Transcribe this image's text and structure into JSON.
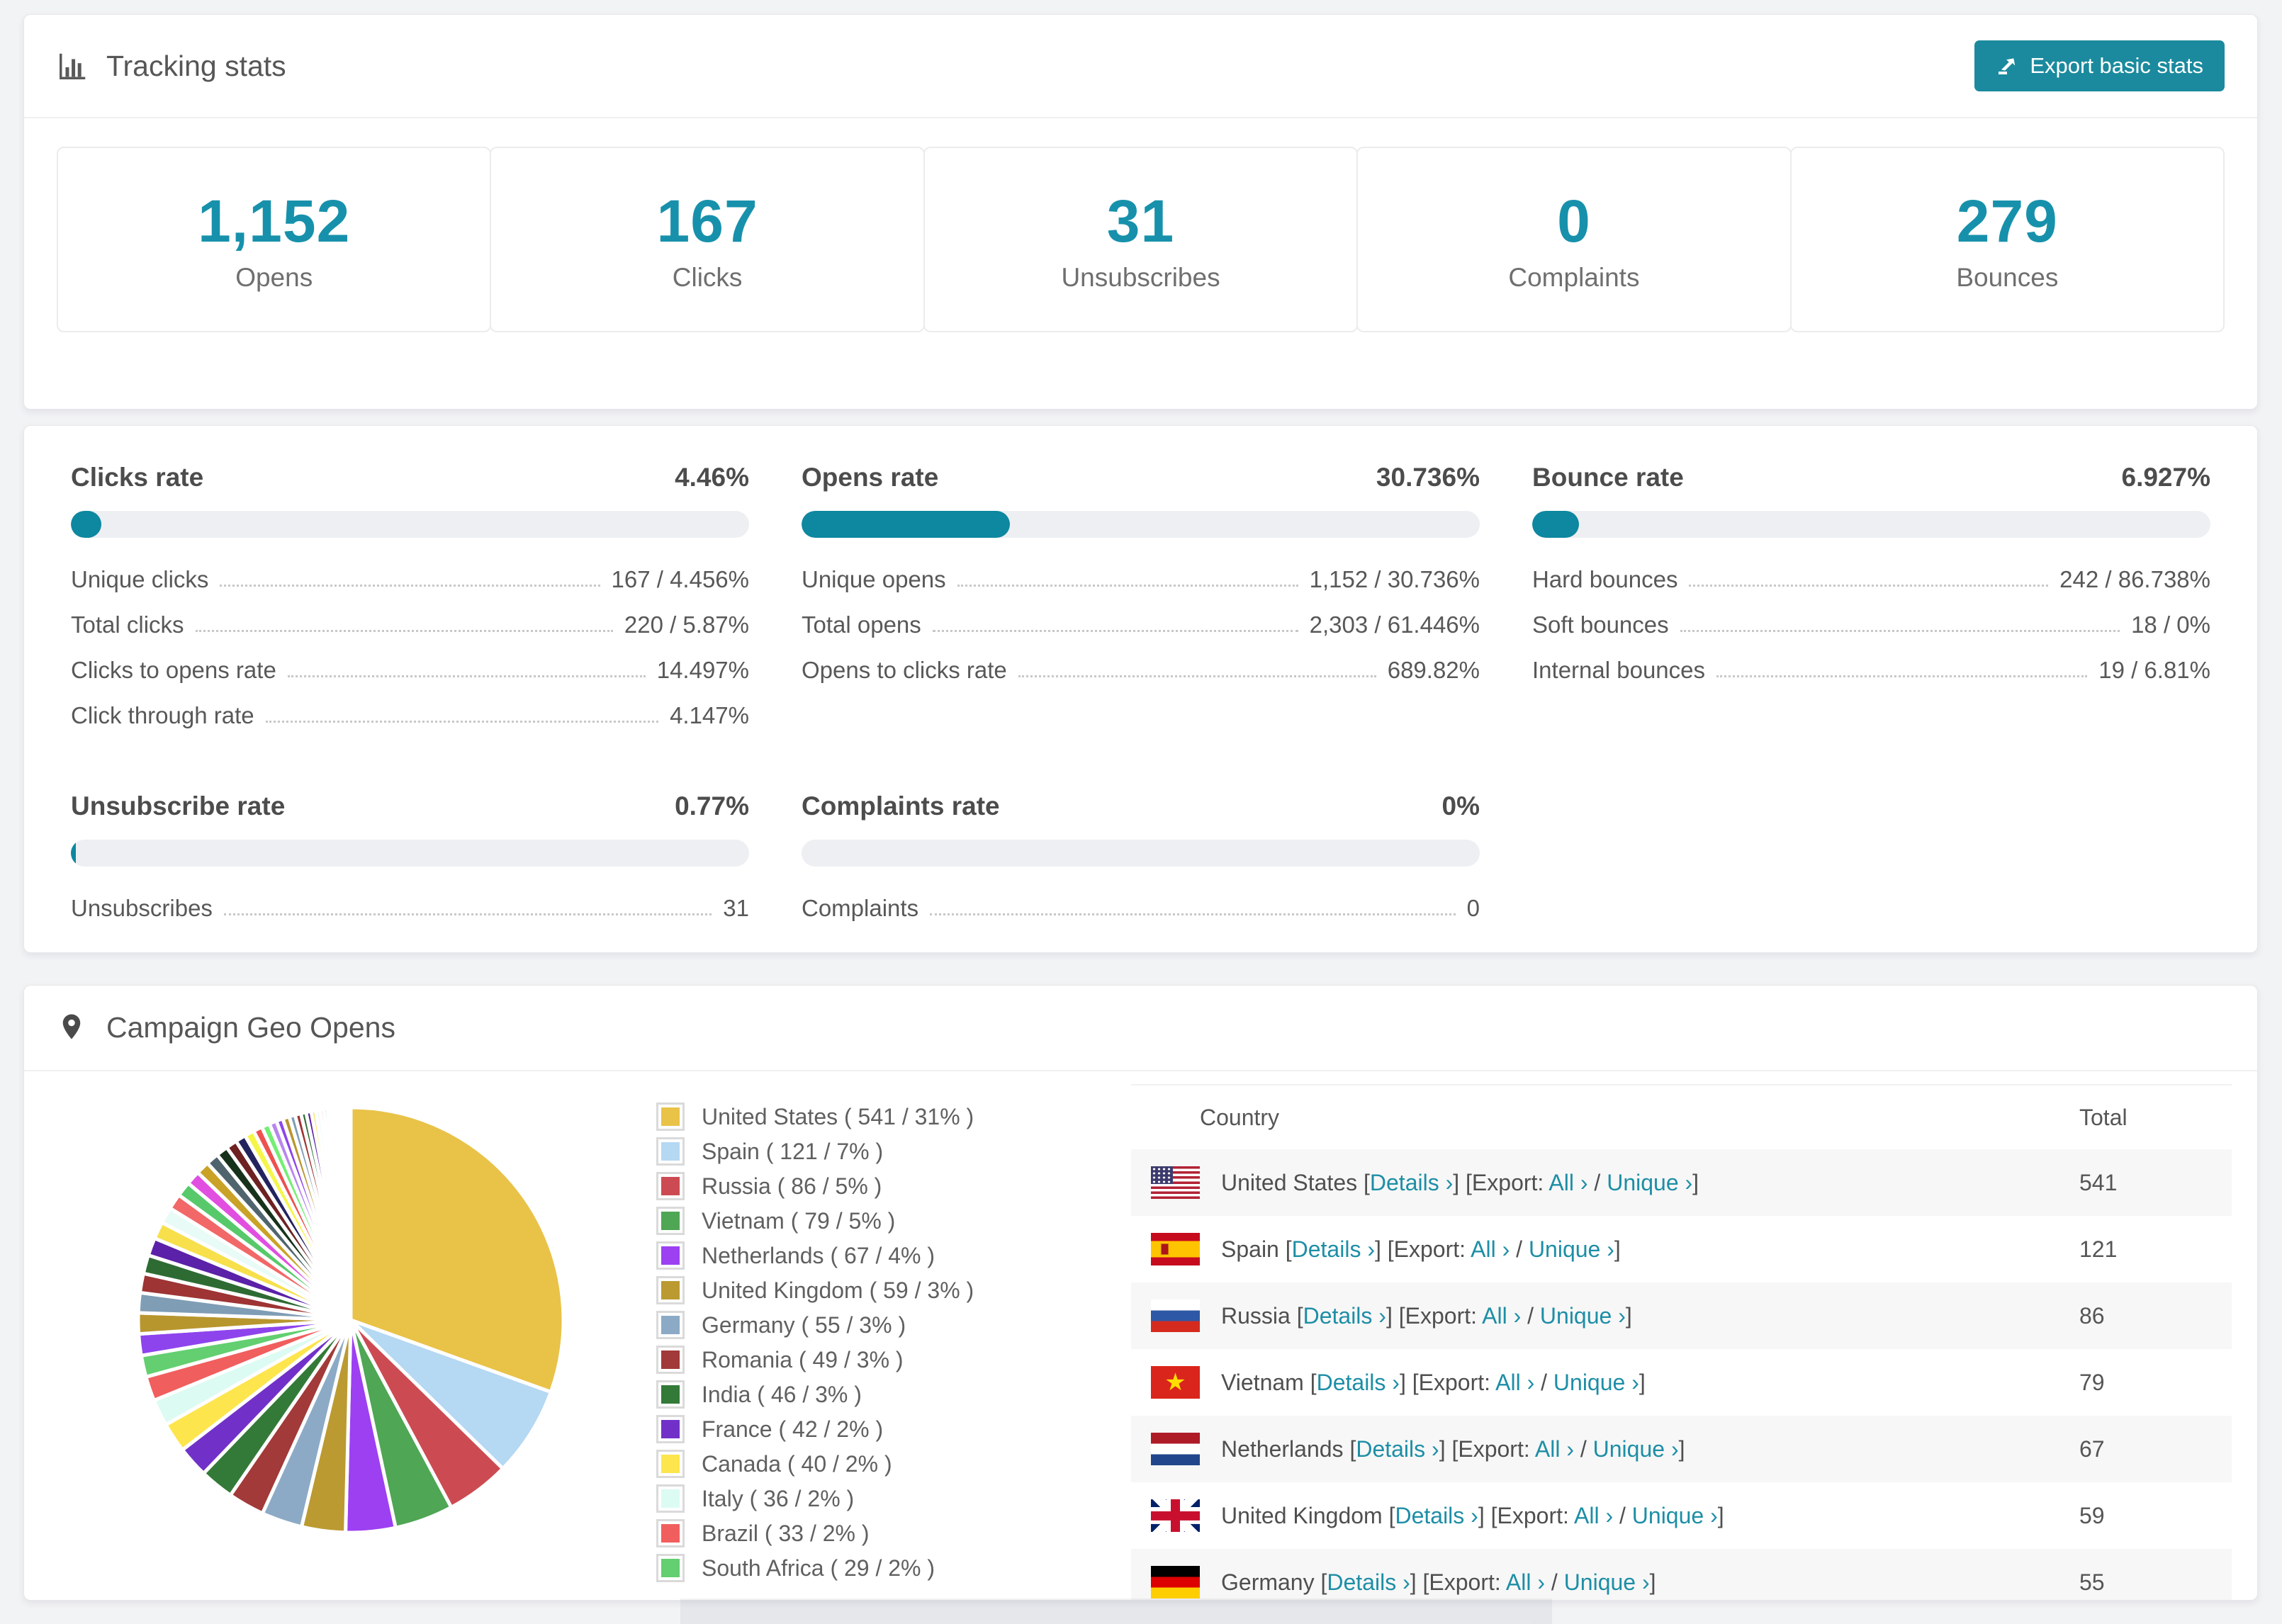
{
  "page": {
    "background": "#f2f3f5",
    "accent_teal": "#1b8a9e",
    "progress_teal": "#0e87a0",
    "stat_number_color": "#1791ab"
  },
  "header": {
    "icon": "bar-chart-icon",
    "title": "Tracking stats",
    "export_button": {
      "icon": "export-icon",
      "label": "Export basic stats"
    }
  },
  "summary_stats": [
    {
      "value": "1,152",
      "label": "Opens"
    },
    {
      "value": "167",
      "label": "Clicks"
    },
    {
      "value": "31",
      "label": "Unsubscribes"
    },
    {
      "value": "0",
      "label": "Complaints"
    },
    {
      "value": "279",
      "label": "Bounces"
    }
  ],
  "rate_panels": [
    {
      "title": "Clicks rate",
      "value": "4.46%",
      "percent": 4.46,
      "rows": [
        {
          "label": "Unique clicks",
          "value": "167 / 4.456%"
        },
        {
          "label": "Total clicks",
          "value": "220 / 5.87%"
        },
        {
          "label": "Clicks to opens rate",
          "value": "14.497%"
        },
        {
          "label": "Click through rate",
          "value": "4.147%"
        }
      ]
    },
    {
      "title": "Opens rate",
      "value": "30.736%",
      "percent": 30.736,
      "rows": [
        {
          "label": "Unique opens",
          "value": "1,152 / 30.736%"
        },
        {
          "label": "Total opens",
          "value": "2,303 / 61.446%"
        },
        {
          "label": "Opens to clicks rate",
          "value": "689.82%"
        }
      ]
    },
    {
      "title": "Bounce rate",
      "value": "6.927%",
      "percent": 6.927,
      "rows": [
        {
          "label": "Hard bounces",
          "value": "242 / 86.738%"
        },
        {
          "label": "Soft bounces",
          "value": "18 / 0%"
        },
        {
          "label": "Internal bounces",
          "value": "19 / 6.81%"
        }
      ]
    },
    {
      "title": "Unsubscribe rate",
      "value": "0.77%",
      "percent": 0.77,
      "rows": [
        {
          "label": "Unsubscribes",
          "value": "31"
        }
      ]
    },
    {
      "title": "Complaints rate",
      "value": "0%",
      "percent": 0,
      "rows": [
        {
          "label": "Complaints",
          "value": "0"
        }
      ]
    }
  ],
  "geo": {
    "icon": "map-pin-icon",
    "title": "Campaign Geo Opens",
    "chart_data": {
      "type": "pie",
      "title": "Campaign Geo Opens",
      "labels": [
        "United States",
        "Spain",
        "Russia",
        "Vietnam",
        "Netherlands",
        "United Kingdom",
        "Germany",
        "Romania",
        "India",
        "France",
        "Canada",
        "Italy",
        "Brazil",
        "South Africa"
      ],
      "values": [
        541,
        121,
        86,
        79,
        67,
        59,
        55,
        49,
        46,
        42,
        40,
        36,
        33,
        29
      ],
      "percent_labels": [
        "31%",
        "7%",
        "5%",
        "5%",
        "4%",
        "3%",
        "3%",
        "3%",
        "3%",
        "2%",
        "2%",
        "2%",
        "2%",
        "2%"
      ],
      "legend_labels": [
        "United States ( 541 / 31% )",
        "Spain ( 121 / 7% )",
        "Russia ( 86 / 5% )",
        "Vietnam ( 79 / 5% )",
        "Netherlands ( 67 / 4% )",
        "United Kingdom ( 59 / 3% )",
        "Germany ( 55 / 3% )",
        "Romania ( 49 / 3% )",
        "India ( 46 / 3% )",
        "France ( 42 / 2% )",
        "Canada ( 40 / 2% )",
        "Italy ( 36 / 2% )",
        "Brazil ( 33 / 2% )",
        "South Africa ( 29 / 2% )"
      ],
      "colors": [
        "#e9c248",
        "#b5d8f3",
        "#cc4b52",
        "#4fa654",
        "#9c40f2",
        "#bb9a31",
        "#8caac6",
        "#a13a38",
        "#337a38",
        "#7131c8",
        "#fde54d",
        "#dcfbf3",
        "#f15e5e",
        "#63cf70"
      ],
      "others_values": [
        29,
        28,
        27,
        26,
        25,
        24,
        23,
        22,
        21,
        20,
        19,
        18,
        17,
        16,
        15,
        14,
        13,
        12,
        11,
        10,
        9,
        9,
        8,
        8,
        7,
        7,
        6,
        6,
        5,
        5,
        4,
        4,
        3,
        3,
        3,
        2,
        2,
        2,
        2,
        1,
        1,
        1,
        1,
        1,
        1
      ],
      "others_palette": [
        "#8e44ec",
        "#b8962e",
        "#7f9db5",
        "#9e3434",
        "#2e6b33",
        "#5b21a8",
        "#f7e04b",
        "#e8fbf7",
        "#f26868",
        "#57c96b",
        "#e04fe0",
        "#c9a227",
        "#50646e",
        "#17321b",
        "#6e2222",
        "#23235f",
        "#f5f549",
        "#ee5050",
        "#74ee74",
        "#b886ee"
      ],
      "start_angle_deg": -90,
      "direction": "clockwise",
      "legend_position": "right",
      "slice_gap_color": "#ffffff"
    },
    "table": {
      "headers": [
        "Country",
        "Total"
      ],
      "link_tokens": {
        "open": "[",
        "close": "]",
        "export_label": "Export:",
        "details": "Details ›",
        "all": "All ›",
        "slash": "/",
        "unique": "Unique ›"
      },
      "rows": [
        {
          "flag": "us",
          "country": "United States",
          "total": "541"
        },
        {
          "flag": "es",
          "country": "Spain",
          "total": "121"
        },
        {
          "flag": "ru",
          "country": "Russia",
          "total": "86"
        },
        {
          "flag": "vn",
          "country": "Vietnam",
          "total": "79"
        },
        {
          "flag": "nl",
          "country": "Netherlands",
          "total": "67"
        },
        {
          "flag": "gb",
          "country": "United Kingdom",
          "total": "59"
        },
        {
          "flag": "de",
          "country": "Germany",
          "total": "55"
        }
      ]
    }
  }
}
